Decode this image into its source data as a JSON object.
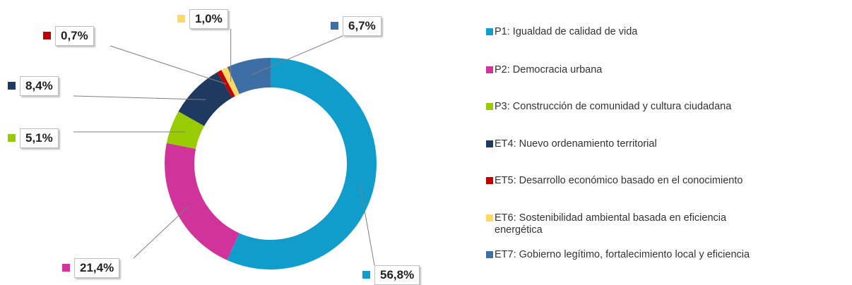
{
  "chart_data": {
    "type": "donut",
    "categories": [
      "P1: Igualdad de calidad de vida",
      "P2: Democracia urbana",
      "P3: Construcción de comunidad y cultura ciudadana",
      "ET4: Nuevo ordenamiento territorial",
      "ET5: Desarrollo económico basado en el conocimiento",
      "ET6: Sostenibilidad ambiental basada en eficiencia energética",
      "ET7: Gobierno legítimo, fortalecimiento local y eficiencia"
    ],
    "values": [
      56.8,
      21.4,
      5.1,
      8.4,
      0.7,
      1.0,
      6.7
    ],
    "value_labels": [
      "56,8%",
      "21,4%",
      "5,1%",
      "8,4%",
      "0,7%",
      "1,0%",
      "6,7%"
    ],
    "colors": [
      "#119dcb",
      "#d0349b",
      "#99cc00",
      "#1f3a60",
      "#c00000",
      "#ffd966",
      "#3d6ea5"
    ],
    "legend": "right"
  }
}
